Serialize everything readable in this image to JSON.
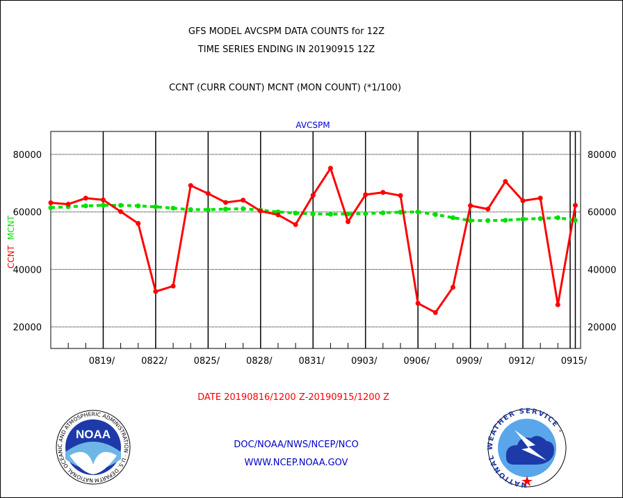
{
  "header": {
    "title_line1": "GFS MODEL AVCSPM DATA COUNTS for 12Z",
    "title_line2": "TIME SERIES ENDING IN 20190915 12Z",
    "subtitle": "CCNT (CURR COUNT) MCNT (MON COUNT) (*1/100)"
  },
  "footer": {
    "date_range": "DATE 20190816/1200 Z-20190915/1200 Z",
    "org_line": "DOC/NOAA/NWS/NCEP/NCO",
    "url_line": "WWW.NCEP.NOAA.GOV"
  },
  "logos": {
    "noaa_label": "NOAA",
    "noaa_ring_text": "NATIONAL OCEANIC AND ATMOSPHERIC ADMINISTRATION · U.S. DEPARTMENT OF COMMERCE ·",
    "nws_ring_text": "NATIONAL WEATHER SERVICE ·"
  },
  "colors": {
    "ccnt": "#ff0000",
    "mcnt": "#00e000",
    "plot_label": "#0000cc"
  },
  "chart_data": {
    "type": "line",
    "title": "AVCSPM",
    "ylabel_left": "CCNT",
    "ylabel_right": "MCNT",
    "xlabel": "DATE 20190816/1200 Z-20190915/1200 Z",
    "ylim": [
      12500,
      88000
    ],
    "y_ticks": [
      20000,
      40000,
      60000,
      80000
    ],
    "y_tick_labels": [
      "20000",
      "40000",
      "60000",
      "80000"
    ],
    "x_tick_labels": [
      "0819/",
      "0822/",
      "0825/",
      "0828/",
      "0831/",
      "0903/",
      "0906/",
      "0909/",
      "0912/",
      "0915/"
    ],
    "x_tick_days": [
      3,
      6,
      9,
      12,
      15,
      18,
      21,
      24,
      27,
      30
    ],
    "x_range_days": [
      0,
      30.3
    ],
    "grid": true,
    "x": [
      "0816",
      "0817",
      "0818",
      "0819",
      "0820",
      "0821",
      "0822",
      "0823",
      "0824",
      "0825",
      "0826",
      "0827",
      "0828",
      "0829",
      "0830",
      "0831",
      "0901",
      "0902",
      "0903",
      "0904",
      "0905",
      "0906",
      "0907",
      "0908",
      "0909",
      "0910",
      "0911",
      "0912",
      "0913",
      "0914",
      "0915"
    ],
    "series": [
      {
        "name": "CCNT",
        "values": [
          63200,
          62700,
          64800,
          64200,
          60100,
          56000,
          32300,
          34200,
          69200,
          66400,
          63300,
          64100,
          60300,
          59000,
          55600,
          65800,
          75200,
          56600,
          66000,
          66800,
          65700,
          28200,
          25000,
          33800,
          62200,
          61000,
          70600,
          63900,
          64800,
          27700,
          62300
        ]
      },
      {
        "name": "MCNT",
        "values": [
          61500,
          61800,
          62100,
          62300,
          62300,
          62100,
          61800,
          61300,
          60800,
          60800,
          61000,
          61100,
          60600,
          60000,
          59600,
          59300,
          59200,
          59300,
          59400,
          59700,
          59900,
          60000,
          59100,
          58000,
          57000,
          57000,
          57100,
          57500,
          57700,
          58000,
          57100
        ]
      }
    ]
  }
}
